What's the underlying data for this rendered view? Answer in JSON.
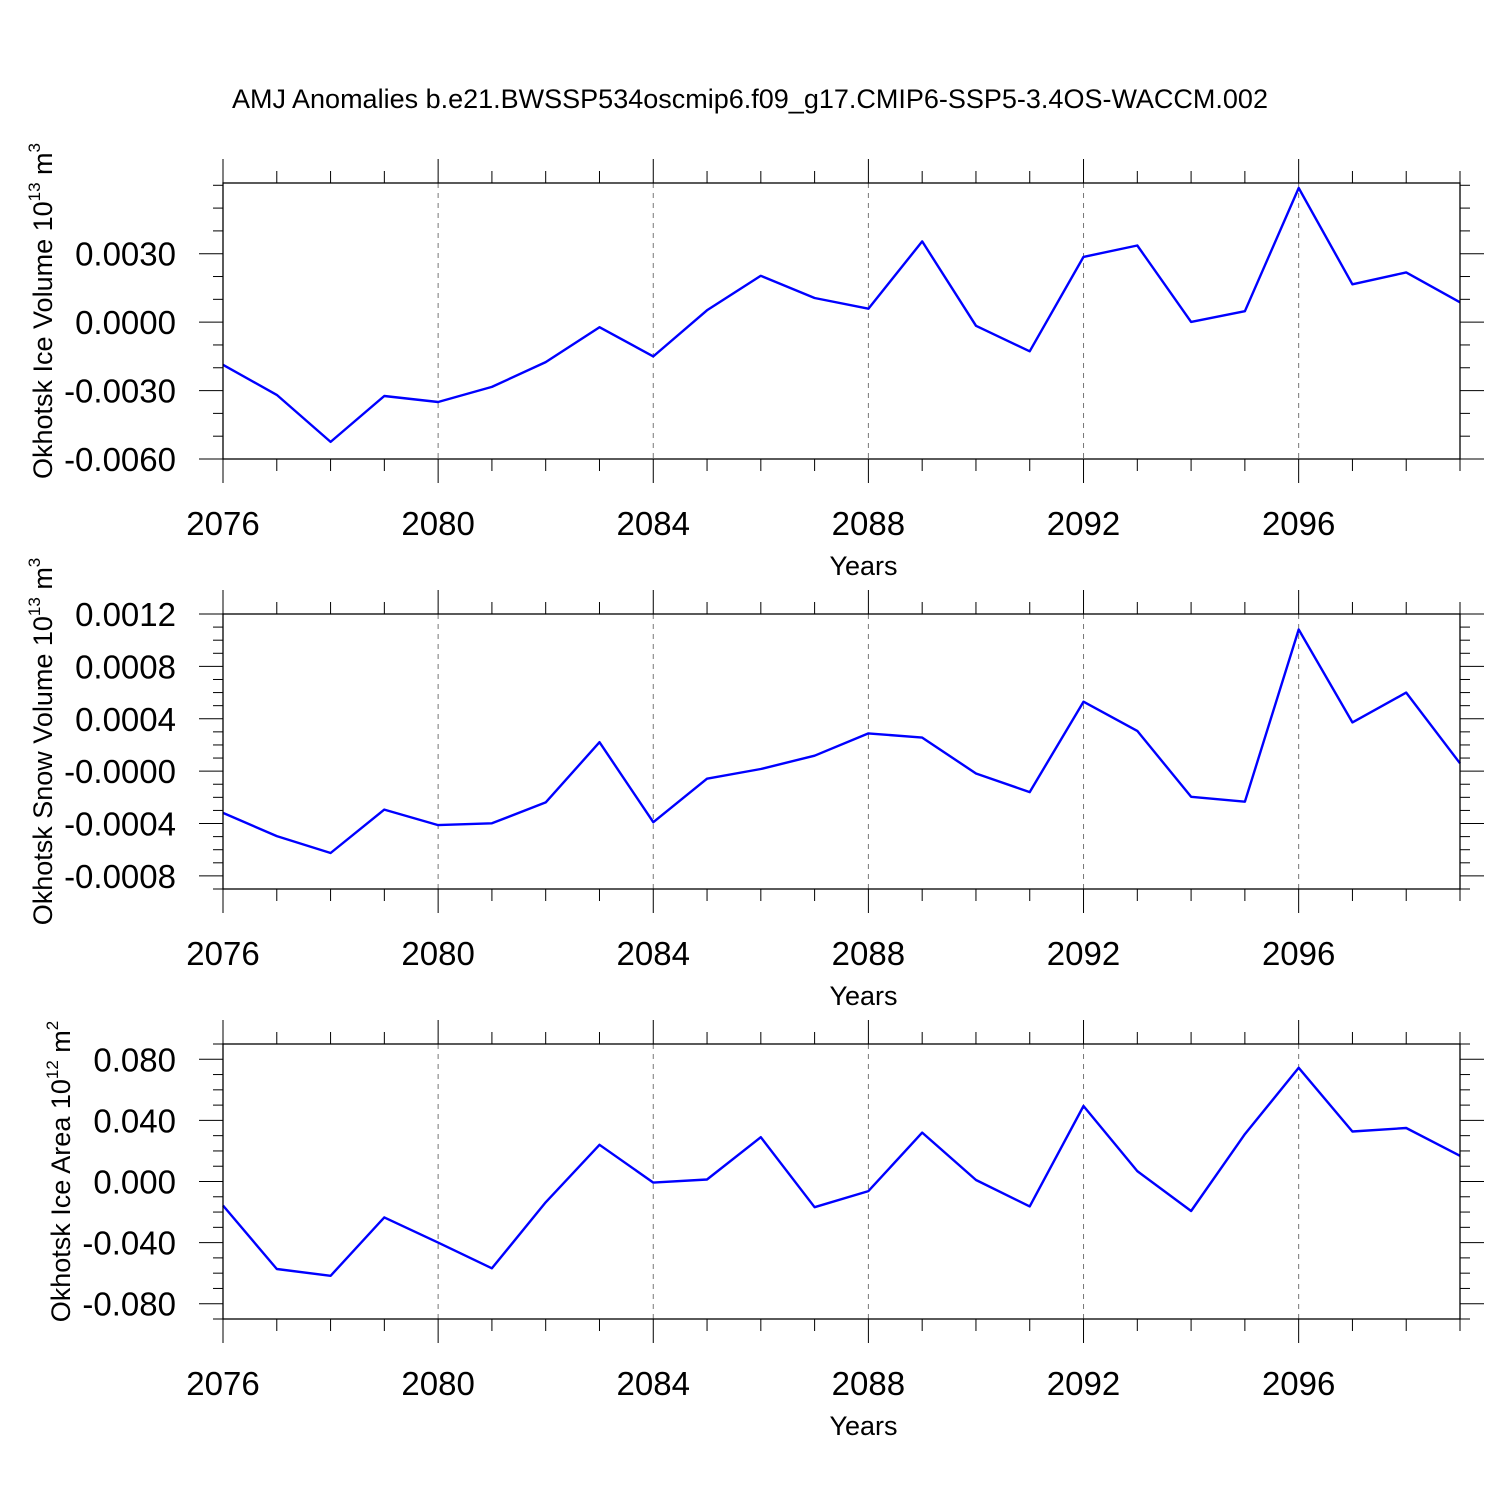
{
  "title": "AMJ Anomalies b.e21.BWSSP534oscmip6.f09_g17.CMIP6-SSP5-3.4OS-WACCM.002",
  "line_color": "#0000ff",
  "chart_data": [
    {
      "type": "line",
      "ylabel_main": "Okhotsk Ice Volume 10",
      "ylabel_exp": "13",
      "ylabel_unit": " m",
      "ylabel_unit_exp": "3",
      "xlabel": "Years",
      "xlim": [
        2076,
        2099
      ],
      "ylim": [
        -0.006,
        0.0061
      ],
      "xticks": [
        2076,
        2080,
        2084,
        2088,
        2092,
        2096
      ],
      "xtick_labels": [
        "2076",
        "2080",
        "2084",
        "2088",
        "2092",
        "2096"
      ],
      "yticks": [
        -0.006,
        -0.003,
        0.0,
        0.003
      ],
      "ytick_labels": [
        "-0.0060",
        "-0.0030",
        "0.0000",
        "0.0030"
      ],
      "yminor_step": 0.001,
      "grid": "vertical-dashed",
      "x": [
        2076,
        2077,
        2078,
        2079,
        2080,
        2081,
        2082,
        2083,
        2084,
        2085,
        2086,
        2087,
        2088,
        2089,
        2090,
        2091,
        2092,
        2093,
        2094,
        2095,
        2096,
        2097,
        2098,
        2099
      ],
      "values": [
        -0.00187,
        -0.00319,
        -0.00525,
        -0.00324,
        -0.0035,
        -0.00284,
        -0.00175,
        -0.00022,
        -0.0015,
        0.00052,
        0.00203,
        0.00106,
        0.00059,
        0.00354,
        -0.00016,
        -0.00128,
        0.00286,
        0.00336,
        1e-05,
        0.00048,
        0.00588,
        0.00166,
        0.00218,
        0.00087
      ]
    },
    {
      "type": "line",
      "ylabel_main": "Okhotsk Snow Volume 10",
      "ylabel_exp": "13",
      "ylabel_unit": " m",
      "ylabel_unit_exp": "3",
      "xlabel": "Years",
      "xlim": [
        2076,
        2099
      ],
      "ylim": [
        -0.0009,
        0.0012
      ],
      "xticks": [
        2076,
        2080,
        2084,
        2088,
        2092,
        2096
      ],
      "xtick_labels": [
        "2076",
        "2080",
        "2084",
        "2088",
        "2092",
        "2096"
      ],
      "yticks": [
        -0.0008,
        -0.0004,
        0.0,
        0.0004,
        0.0008,
        0.0012
      ],
      "ytick_labels": [
        "-0.0008",
        "-0.0004",
        "-0.0000",
        "0.0004",
        "0.0008",
        "0.0012"
      ],
      "yminor_step": 0.0001,
      "grid": "vertical-dashed",
      "x": [
        2076,
        2077,
        2078,
        2079,
        2080,
        2081,
        2082,
        2083,
        2084,
        2085,
        2086,
        2087,
        2088,
        2089,
        2090,
        2091,
        2092,
        2093,
        2094,
        2095,
        2096,
        2097,
        2098,
        2099
      ],
      "values": [
        -0.000319,
        -0.000496,
        -0.000625,
        -0.000294,
        -0.000412,
        -0.000398,
        -0.000239,
        0.000221,
        -0.00039,
        -5.8e-05,
        1.6e-05,
        0.000118,
        0.000288,
        0.000256,
        -1.8e-05,
        -0.00016,
        0.00053,
        0.000307,
        -0.000196,
        -0.000233,
        0.001082,
        0.000372,
        0.0006,
        6e-05
      ]
    },
    {
      "type": "line",
      "ylabel_main": "Okhotsk Ice Area 10",
      "ylabel_exp": "12",
      "ylabel_unit": " m",
      "ylabel_unit_exp": "2",
      "xlabel": "Years",
      "xlim": [
        2076,
        2099
      ],
      "ylim": [
        -0.09,
        0.09
      ],
      "xticks": [
        2076,
        2080,
        2084,
        2088,
        2092,
        2096
      ],
      "xtick_labels": [
        "2076",
        "2080",
        "2084",
        "2088",
        "2092",
        "2096"
      ],
      "yticks": [
        -0.08,
        -0.04,
        0.0,
        0.04,
        0.08
      ],
      "ytick_labels": [
        "-0.080",
        "-0.040",
        "0.000",
        "0.040",
        "0.080"
      ],
      "yminor_step": 0.01,
      "grid": "vertical-dashed",
      "x": [
        2076,
        2077,
        2078,
        2079,
        2080,
        2081,
        2082,
        2083,
        2084,
        2085,
        2086,
        2087,
        2088,
        2089,
        2090,
        2091,
        2092,
        2093,
        2094,
        2095,
        2096,
        2097,
        2098,
        2099
      ],
      "values": [
        -0.0157,
        -0.0573,
        -0.0617,
        -0.0235,
        -0.04,
        -0.0568,
        -0.0136,
        0.024,
        -0.0007,
        0.0013,
        0.029,
        -0.0168,
        -0.0063,
        0.032,
        0.001,
        -0.0163,
        0.0494,
        0.0068,
        -0.0193,
        0.031,
        0.0744,
        0.0327,
        0.035,
        0.0168
      ]
    }
  ]
}
